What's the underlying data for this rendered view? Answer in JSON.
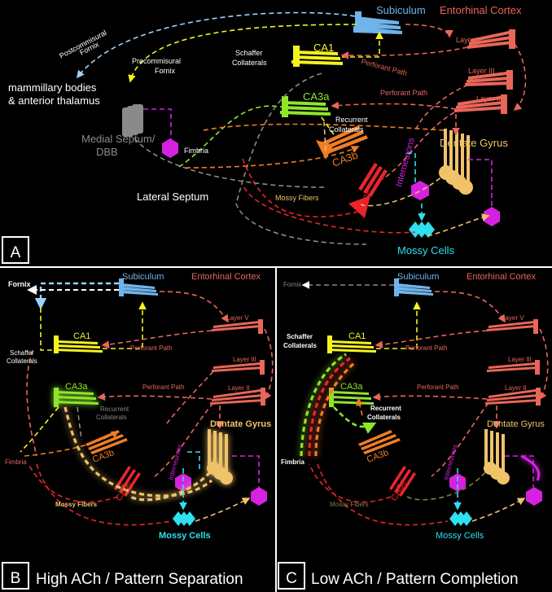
{
  "colors": {
    "subiculum": "#6fb4ec",
    "entorhinal": "#e8665a",
    "ca1": "#f5f31e",
    "ca3a": "#8ee62b",
    "ca3b": "#ef7d25",
    "ca3c": "#e8252b",
    "dentate": "#f0c36a",
    "interneuron": "#d622e0",
    "mossy_cells": "#2ee0f0",
    "septum": "#8a8a8a",
    "fornix_dash": "#9ad2ff",
    "white": "#ffffff"
  },
  "panel_a": {
    "letter": "A",
    "subiculum": "Subiculum",
    "entorhinal_cortex": "Entorhinal Cortex",
    "layer_v": "Layer V",
    "layer_iii": "Layer III",
    "layer_ii": "Layer II",
    "postcommisural_fornix_1": "Postcommisural",
    "postcommisural_fornix_2": "Fornix",
    "precommisural_fornix_1": "Precommisural",
    "precommisural_fornix_2": "Fornix",
    "mammillary_1": "mammillary bodies",
    "mammillary_2": "& anterior thalamus",
    "schaffer_1": "Schaffer",
    "schaffer_2": "Collaterals",
    "ca1": "CA1",
    "perforant_path_1": "Perforant Path",
    "perforant_path_2": "Perforant Path",
    "ca3a": "CA3a",
    "recurrent_1": "Recurrent",
    "recurrent_2": "Collaterals",
    "medial_septum_1": "Medial Septum/",
    "medial_septum_2": "DBB",
    "fimbria": "Fimbria",
    "ca3b": "CA3b",
    "dentate_gyrus": "Dentate Gyrus",
    "interneurons": "Interneurons",
    "lateral_septum": "Lateral Septum",
    "mossy_fibers": "Mossy Fibers",
    "ca3c": "CA3c",
    "mossy_cells": "Mossy Cells"
  },
  "panel_b": {
    "letter": "B",
    "caption": "High ACh / Pattern Separation",
    "fornix": "Fornix",
    "subiculum": "Subiculum",
    "entorhinal_cortex": "Entorhinal Cortex",
    "layer_v": "Layer V",
    "ca1": "CA1",
    "perforant_path_1": "Perforant Path",
    "schaffer_1": "Schaffer",
    "schaffer_2": "Collaterals",
    "layer_iii": "Layer III",
    "ca3a": "CA3a",
    "perforant_path_2": "Perforant Path",
    "layer_ii": "Layer II",
    "recurrent_1": "Recurrent",
    "recurrent_2": "Collaterals",
    "dentate_gyrus": "Dentate Gyrus",
    "ca3b": "CA3b",
    "fimbria": "Fimbria",
    "interneurons": "Interneurons",
    "ca3c": "CA3c",
    "mossy_fibers": "Mossy Fibers",
    "mossy_cells": "Mossy Cells"
  },
  "panel_c": {
    "letter": "C",
    "caption": "Low ACh / Pattern Completion",
    "fornix": "Fornix",
    "subiculum": "Subiculum",
    "entorhinal_cortex": "Entorhinal Cortex",
    "layer_v": "Layer V",
    "schaffer_1": "Schaffer",
    "schaffer_2": "Collaterals",
    "ca1": "CA1",
    "perforant_path_1": "Perforant Path",
    "layer_iii": "Layer III",
    "ca3a": "CA3a",
    "perforant_path_2": "Perforant Path",
    "layer_ii": "Layer II",
    "recurrent_1": "Recurrent",
    "recurrent_2": "Collaterals",
    "dentate_gyrus": "Dentate Gyrus",
    "ca3b": "CA3b",
    "fimbria": "Fimbria",
    "interneurons": "Interneurons",
    "ca3c": "CA3c",
    "mossy_fibers": "Mossy Fibers",
    "mossy_cells": "Mossy Cells"
  }
}
